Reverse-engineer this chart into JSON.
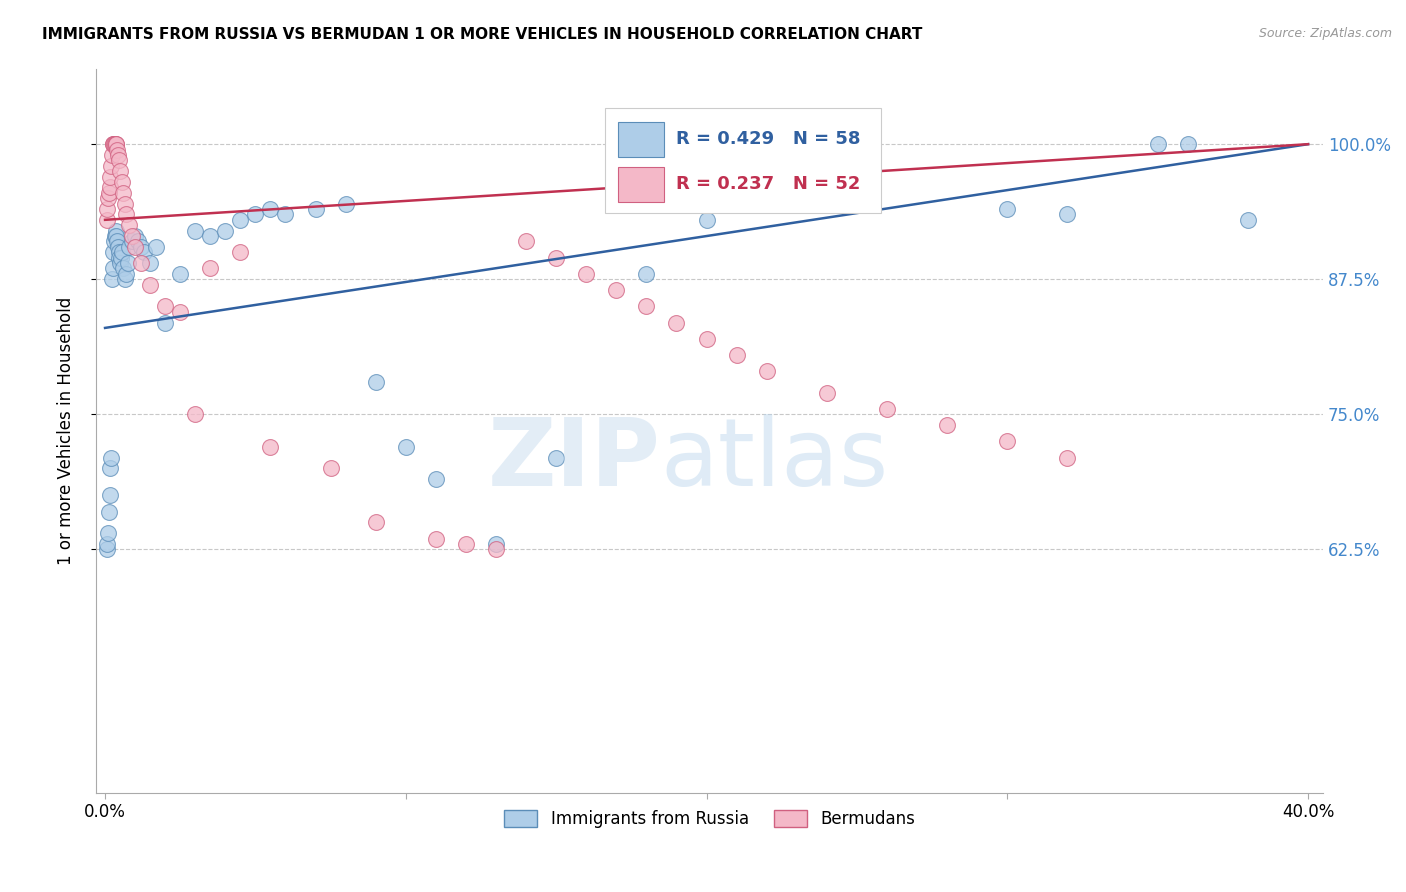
{
  "title": "IMMIGRANTS FROM RUSSIA VS BERMUDAN 1 OR MORE VEHICLES IN HOUSEHOLD CORRELATION CHART",
  "source": "Source: ZipAtlas.com",
  "ylabel": "1 or more Vehicles in Household",
  "xlim_min": -0.3,
  "xlim_max": 40.5,
  "ylim_min": 40.0,
  "ylim_max": 107.0,
  "yticks": [
    62.5,
    75.0,
    87.5,
    100.0
  ],
  "xtick_positions": [
    0.0,
    10.0,
    20.0,
    30.0,
    40.0
  ],
  "xtick_labels": [
    "0.0%",
    "",
    "",
    "",
    "40.0%"
  ],
  "ytick_labels": [
    "62.5%",
    "75.0%",
    "87.5%",
    "100.0%"
  ],
  "legend_blue_label": "Immigrants from Russia",
  "legend_pink_label": "Bermudans",
  "blue_R": 0.429,
  "blue_N": 58,
  "pink_R": 0.237,
  "pink_N": 52,
  "blue_color": "#aecde8",
  "pink_color": "#f4b8c8",
  "blue_edge_color": "#5b8db8",
  "pink_edge_color": "#d06080",
  "blue_line_color": "#3060a0",
  "pink_line_color": "#c03050",
  "blue_x": [
    0.05,
    0.08,
    0.1,
    0.12,
    0.15,
    0.18,
    0.2,
    0.22,
    0.25,
    0.28,
    0.3,
    0.32,
    0.35,
    0.38,
    0.4,
    0.42,
    0.45,
    0.48,
    0.5,
    0.52,
    0.55,
    0.6,
    0.65,
    0.7,
    0.75,
    0.8,
    0.9,
    1.0,
    1.1,
    1.2,
    1.3,
    1.5,
    1.7,
    2.0,
    2.5,
    3.0,
    3.5,
    4.0,
    4.5,
    5.0,
    5.5,
    6.0,
    7.0,
    8.0,
    9.0,
    10.0,
    11.0,
    13.0,
    15.0,
    18.0,
    20.0,
    22.0,
    25.0,
    30.0,
    32.0,
    35.0,
    36.0,
    38.0
  ],
  "blue_y": [
    62.5,
    63.0,
    64.0,
    66.0,
    67.5,
    70.0,
    71.0,
    87.5,
    88.5,
    90.0,
    91.0,
    91.5,
    92.0,
    91.5,
    91.0,
    90.5,
    90.0,
    89.5,
    89.0,
    89.5,
    90.0,
    88.5,
    87.5,
    88.0,
    89.0,
    90.5,
    91.0,
    91.5,
    91.0,
    90.5,
    90.0,
    89.0,
    90.5,
    83.5,
    88.0,
    92.0,
    91.5,
    92.0,
    93.0,
    93.5,
    94.0,
    93.5,
    94.0,
    94.5,
    78.0,
    72.0,
    69.0,
    63.0,
    71.0,
    88.0,
    93.0,
    94.5,
    95.0,
    94.0,
    93.5,
    100.0,
    100.0,
    93.0
  ],
  "pink_x": [
    0.05,
    0.08,
    0.1,
    0.12,
    0.15,
    0.18,
    0.2,
    0.22,
    0.25,
    0.28,
    0.3,
    0.32,
    0.35,
    0.38,
    0.4,
    0.42,
    0.45,
    0.5,
    0.55,
    0.6,
    0.65,
    0.7,
    0.8,
    0.9,
    1.0,
    1.2,
    1.5,
    2.0,
    2.5,
    3.0,
    3.5,
    4.5,
    5.5,
    7.5,
    9.0,
    11.0,
    12.0,
    13.0,
    14.0,
    15.0,
    16.0,
    17.0,
    18.0,
    19.0,
    20.0,
    21.0,
    22.0,
    24.0,
    26.0,
    28.0,
    30.0,
    32.0
  ],
  "pink_y": [
    93.0,
    94.0,
    95.0,
    95.5,
    96.0,
    97.0,
    98.0,
    99.0,
    100.0,
    100.0,
    100.0,
    100.0,
    100.0,
    100.0,
    99.5,
    99.0,
    98.5,
    97.5,
    96.5,
    95.5,
    94.5,
    93.5,
    92.5,
    91.5,
    90.5,
    89.0,
    87.0,
    85.0,
    84.5,
    75.0,
    88.5,
    90.0,
    72.0,
    70.0,
    65.0,
    63.5,
    63.0,
    62.5,
    91.0,
    89.5,
    88.0,
    86.5,
    85.0,
    83.5,
    82.0,
    80.5,
    79.0,
    77.0,
    75.5,
    74.0,
    72.5,
    71.0
  ],
  "blue_trendline_x0": 0.0,
  "blue_trendline_x1": 40.0,
  "blue_trendline_y0": 83.0,
  "blue_trendline_y1": 100.0,
  "pink_trendline_x0": 0.0,
  "pink_trendline_x1": 40.0,
  "pink_trendline_y0": 93.0,
  "pink_trendline_y1": 100.0
}
